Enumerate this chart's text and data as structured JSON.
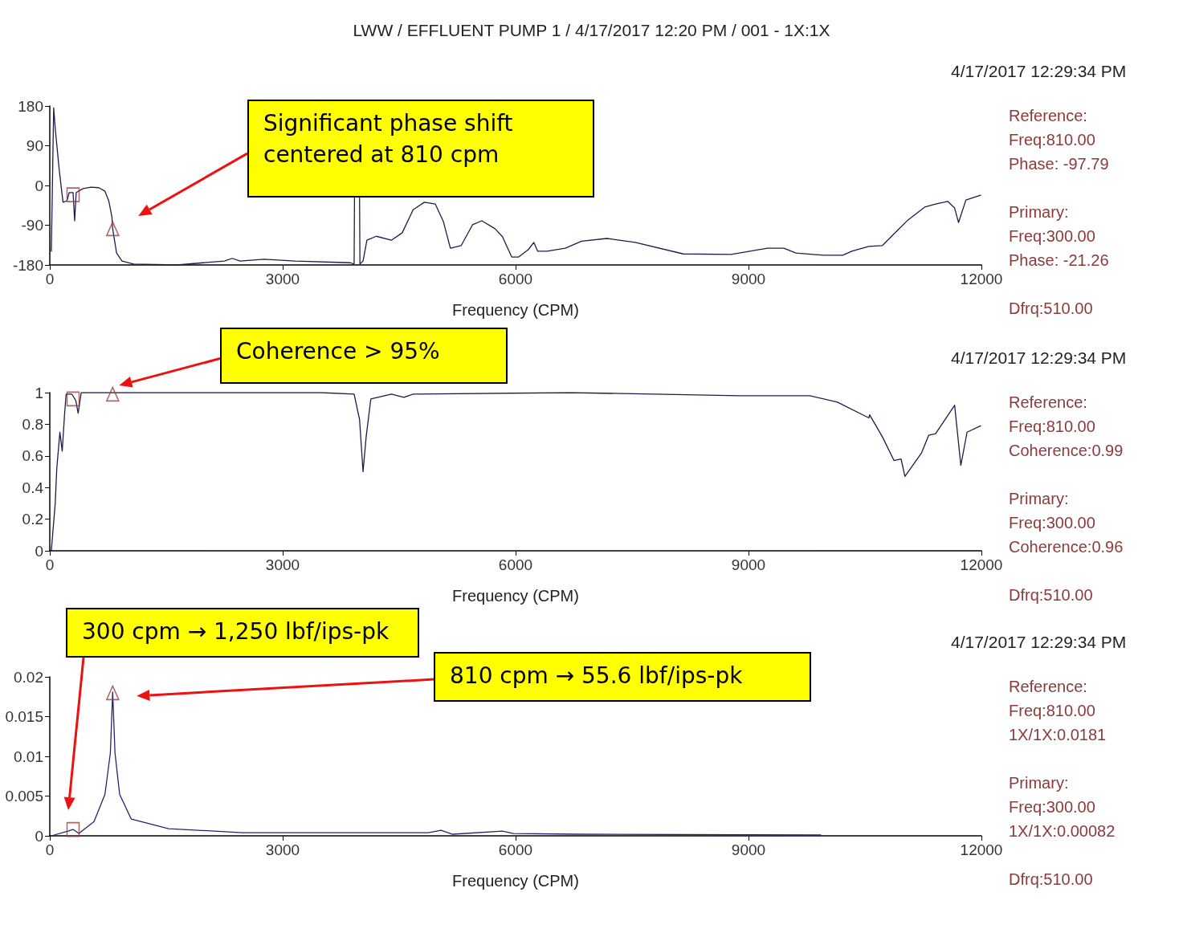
{
  "chart_data": [
    {
      "type": "line",
      "title": "LWW / EFFLUENT PUMP 1 / 4/17/2017 12:20 PM / 001 - 1X:1X",
      "xlabel": "Frequency (CPM)",
      "xlim": [
        0,
        12000
      ],
      "xticks": [
        0,
        3000,
        6000,
        9000,
        12000
      ],
      "ylim": [
        -180,
        180
      ],
      "yticks": [
        -180,
        -90,
        0,
        90,
        180
      ],
      "grid": false,
      "marker": "none",
      "line_style": "solid",
      "series": [
        {
          "color": "#1c1c4c",
          "x": [
            20,
            50,
            70,
            120,
            170,
            220,
            250,
            300,
            320,
            340,
            430,
            530,
            630,
            710,
            760,
            800,
            810,
            860,
            930,
            1080,
            1640,
            2250,
            2350,
            2450,
            2760,
            3160,
            3870,
            3920,
            3925,
            3990,
            3995,
            4035,
            4085,
            4205,
            4400,
            4540,
            4680,
            4825,
            4965,
            5070,
            5160,
            5300,
            5445,
            5565,
            5735,
            5830,
            5950,
            6040,
            6165,
            6235,
            6285,
            6405,
            6640,
            6850,
            7175,
            7540,
            8160,
            8775,
            9245,
            9455,
            9610,
            9965,
            10215,
            10330,
            10550,
            10725,
            10905,
            11055,
            11270,
            11410,
            11565,
            11655,
            11705,
            11800,
            11990
          ],
          "values": [
            -149,
            176,
            129,
            38,
            -38,
            -35,
            -16,
            -16,
            -80,
            -16,
            -7,
            -4,
            -5,
            -13,
            -35,
            -71,
            -98,
            -153,
            -171,
            -178,
            -180,
            -171,
            -165,
            -171,
            -167,
            -171,
            -175,
            -178,
            -25,
            -25,
            -178,
            -171,
            -124,
            -115,
            -124,
            -107,
            -55,
            -38,
            -42,
            -82,
            -142,
            -136,
            -89,
            -80,
            -98,
            -116,
            -162,
            -162,
            -145,
            -129,
            -149,
            -149,
            -142,
            -126,
            -120,
            -129,
            -155,
            -156,
            -142,
            -142,
            -153,
            -158,
            -158,
            -149,
            -138,
            -136,
            -104,
            -78,
            -49,
            -42,
            -36,
            -51,
            -84,
            -33,
            -22
          ]
        },
        {
          "type": "scatter",
          "marker": "square",
          "color": "#9a4040",
          "x": [
            300
          ],
          "values": [
            -21
          ]
        },
        {
          "type": "scatter",
          "marker": "triangle",
          "color": "#9a4040",
          "x": [
            810
          ],
          "values": [
            -98
          ]
        }
      ],
      "annotations": [
        "4/17/2017 12:29:34 PM",
        "Reference:",
        "Freq:810.00",
        "Phase: -97.79",
        "Primary:",
        "Freq:300.00",
        "Phase: -21.26",
        "Dfrq:510.00",
        "Significant phase shift centered at 810 cpm"
      ]
    },
    {
      "type": "line",
      "xlabel": "Frequency (CPM)",
      "xlim": [
        0,
        12000
      ],
      "xticks": [
        0,
        3000,
        6000,
        9000,
        12000
      ],
      "ylim": [
        0,
        1
      ],
      "yticks": [
        0,
        0.2,
        0.4,
        0.6,
        0.8,
        1
      ],
      "grid": false,
      "marker": "none",
      "line_style": "solid",
      "series": [
        {
          "color": "#1c1c4c",
          "x": [
            20,
            70,
            90,
            130,
            160,
            190,
            210,
            285,
            335,
            365,
            405,
            1500,
            2500,
            3500,
            3920,
            3990,
            4035,
            4075,
            4135,
            4400,
            4560,
            4680,
            6710,
            8880,
            9790,
            10145,
            10550,
            10560,
            10725,
            10875,
            10965,
            11015,
            11230,
            11320,
            11410,
            11655,
            11735,
            11815,
            11990
          ],
          "values": [
            0,
            0.3,
            0.52,
            0.75,
            0.63,
            0.86,
            0.99,
            0.99,
            0.95,
            0.87,
            1,
            1,
            1,
            1,
            0.99,
            0.83,
            0.5,
            0.72,
            0.96,
            0.99,
            0.97,
            0.99,
            1,
            0.98,
            0.98,
            0.94,
            0.84,
            0.86,
            0.72,
            0.57,
            0.58,
            0.47,
            0.62,
            0.73,
            0.74,
            0.92,
            0.54,
            0.75,
            0.79
          ]
        },
        {
          "type": "scatter",
          "marker": "square",
          "color": "#9a4040",
          "x": [
            300
          ],
          "values": [
            0.96
          ]
        },
        {
          "type": "scatter",
          "marker": "triangle",
          "color": "#9a4040",
          "x": [
            810
          ],
          "values": [
            0.99
          ]
        }
      ],
      "annotations": [
        "4/17/2017 12:29:34 PM",
        "Reference:",
        "Freq:810.00",
        "Coherence:0.99",
        "Primary:",
        "Freq:300.00",
        "Coherence:0.96",
        "Dfrq:510.00",
        "Coherence > 95%"
      ]
    },
    {
      "type": "line",
      "xlabel": "Frequency (CPM)",
      "xlim": [
        0,
        12000
      ],
      "xticks": [
        0,
        3000,
        6000,
        9000,
        12000
      ],
      "ylim": [
        0,
        0.02
      ],
      "yticks": [
        0,
        0.005,
        0.01,
        0.015,
        0.02
      ],
      "grid": false,
      "marker": "none",
      "line_style": "solid",
      "series": [
        {
          "color": "#24246e",
          "x": [
            20,
            235,
            300,
            375,
            570,
            710,
            780,
            810,
            840,
            900,
            1050,
            1530,
            2480,
            4875,
            5040,
            5190,
            5830,
            5970,
            6790,
            9930
          ],
          "values": [
            0,
            0.0006,
            0.0008,
            0.0003,
            0.0018,
            0.0052,
            0.0104,
            0.0181,
            0.0104,
            0.0052,
            0.0021,
            0.0009,
            0.0004,
            0.0004,
            0.0007,
            0.0002,
            0.0006,
            0.0003,
            0.0002,
            0.0001
          ]
        },
        {
          "type": "scatter",
          "marker": "square",
          "color": "#9a4040",
          "x": [
            300
          ],
          "values": [
            0.0008
          ]
        },
        {
          "type": "scatter",
          "marker": "triangle",
          "color": "#9a4040",
          "x": [
            810
          ],
          "values": [
            0.018
          ]
        }
      ],
      "annotations": [
        "4/17/2017 12:29:34 PM",
        "Reference:",
        "Freq:810.00",
        "1X/1X:0.0181",
        "Primary:",
        "Freq:300.00",
        "1X/1X:0.00082",
        "Dfrq:510.00",
        "300 cpm → 1,250 lbf/ips-pk",
        "810 cpm → 55.6 lbf/ips-pk"
      ]
    }
  ]
}
